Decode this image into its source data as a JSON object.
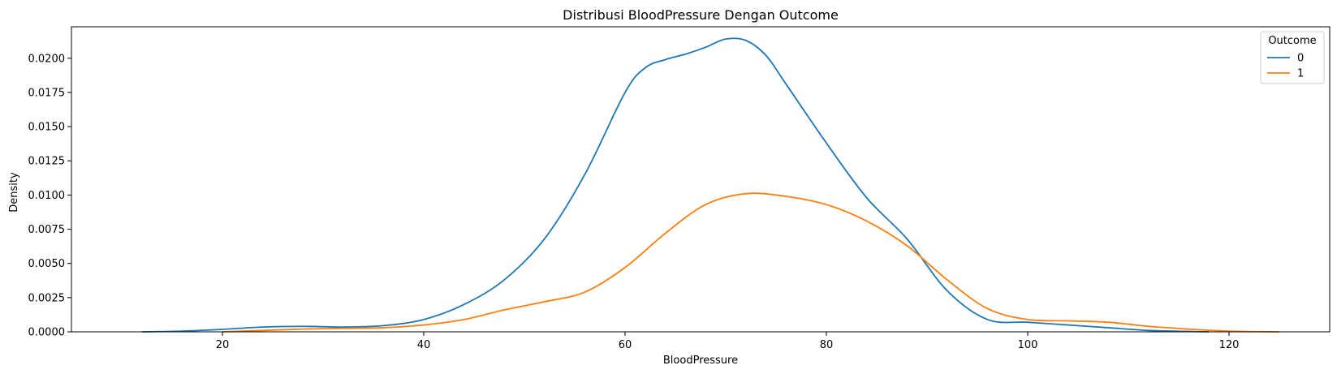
{
  "chart_data": {
    "type": "line",
    "title": "Distribusi BloodPressure Dengan Outcome",
    "xlabel": "BloodPressure",
    "ylabel": "Density",
    "xlim": [
      5,
      130
    ],
    "ylim": [
      0,
      0.0223
    ],
    "xticks": [
      20,
      40,
      60,
      80,
      100,
      120
    ],
    "xtick_labels": [
      "20",
      "40",
      "60",
      "80",
      "100",
      "120"
    ],
    "yticks": [
      0,
      0.0025,
      0.005,
      0.0075,
      0.01,
      0.0125,
      0.015,
      0.0175,
      0.02
    ],
    "ytick_labels": [
      "0.0000",
      "0.0025",
      "0.0050",
      "0.0075",
      "0.0100",
      "0.0125",
      "0.0150",
      "0.0175",
      "0.0200"
    ],
    "grid": false,
    "legend": {
      "title": "Outcome",
      "placement": "top-right"
    },
    "series": [
      {
        "name": "0",
        "color": "#1f77b4",
        "x": [
          12,
          16,
          20,
          24,
          28,
          32,
          36,
          40,
          44,
          48,
          52,
          56,
          60,
          62,
          64,
          66,
          68,
          70,
          72,
          74,
          76,
          80,
          84,
          88,
          92,
          96,
          100,
          104,
          108,
          112,
          116,
          118
        ],
        "y": [
          0.0,
          5e-05,
          0.00018,
          0.00035,
          0.0004,
          0.00035,
          0.00045,
          0.0009,
          0.002,
          0.0038,
          0.0068,
          0.0115,
          0.0175,
          0.0193,
          0.0199,
          0.0203,
          0.0208,
          0.0214,
          0.0213,
          0.0202,
          0.0181,
          0.0138,
          0.0098,
          0.0068,
          0.003,
          0.0009,
          0.0007,
          0.0005,
          0.0003,
          0.0001,
          3e-05,
          0.0
        ]
      },
      {
        "name": "1",
        "color": "#ff7f0e",
        "x": [
          20,
          24,
          28,
          32,
          36,
          40,
          44,
          48,
          52,
          56,
          60,
          64,
          68,
          72,
          76,
          80,
          84,
          88,
          92,
          96,
          100,
          104,
          108,
          112,
          116,
          120,
          125
        ],
        "y": [
          0.0,
          0.0001,
          0.0002,
          0.00025,
          0.0003,
          0.0005,
          0.0009,
          0.0016,
          0.0022,
          0.0029,
          0.0047,
          0.0072,
          0.0093,
          0.0101,
          0.0099,
          0.0093,
          0.0081,
          0.0063,
          0.0038,
          0.0017,
          0.0009,
          0.0008,
          0.0007,
          0.0004,
          0.0002,
          5e-05,
          0.0
        ]
      }
    ]
  }
}
